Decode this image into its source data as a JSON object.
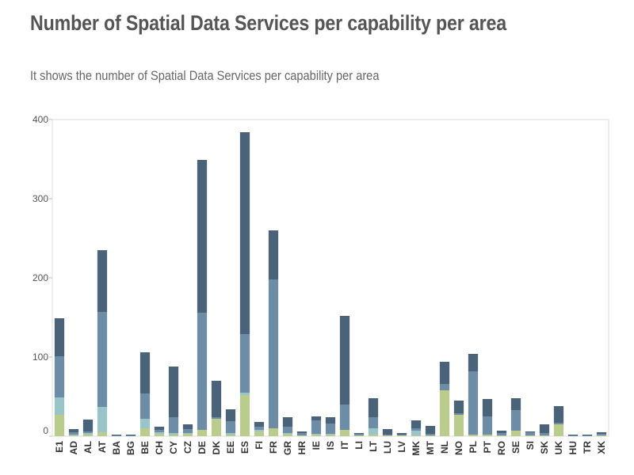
{
  "chart_data": {
    "type": "bar",
    "stacked": true,
    "title": "Number of Spatial Data Services per capability per area",
    "subtitle": "It shows the number of Spatial Data Services per capability per area",
    "xlabel": "",
    "ylabel": "",
    "ylim": [
      0,
      400
    ],
    "yticks": [
      "0",
      "100",
      "200",
      "300",
      "400"
    ],
    "grid": false,
    "legend": "none",
    "categories": [
      "E1",
      "AD",
      "AL",
      "AT",
      "BA",
      "BG",
      "BE",
      "CH",
      "CY",
      "CZ",
      "DE",
      "DK",
      "EE",
      "ES",
      "FI",
      "FR",
      "GR",
      "HR",
      "IE",
      "IS",
      "IT",
      "LI",
      "LT",
      "LU",
      "LV",
      "MK",
      "MT",
      "NL",
      "NO",
      "PL",
      "PT",
      "RO",
      "SE",
      "SI",
      "SK",
      "UK",
      "HU",
      "TR",
      "XK"
    ],
    "series": [
      {
        "color": "#b9cc8c",
        "values": [
          27,
          1,
          2,
          5,
          0,
          0,
          10,
          3,
          2,
          3,
          8,
          22,
          2,
          52,
          6,
          10,
          3,
          1,
          2,
          2,
          8,
          1,
          2,
          1,
          1,
          1,
          1,
          58,
          27,
          2,
          2,
          1,
          7,
          1,
          1,
          15,
          0,
          0,
          1
        ]
      },
      {
        "color": "#9ac5c8",
        "values": [
          22,
          1,
          2,
          32,
          0,
          0,
          12,
          2,
          2,
          1,
          0,
          0,
          2,
          3,
          2,
          0,
          1,
          0,
          1,
          1,
          0,
          0,
          8,
          0,
          0,
          6,
          0,
          0,
          0,
          0,
          0,
          0,
          0,
          0,
          0,
          0,
          0,
          0,
          0
        ]
      },
      {
        "color": "#6c8da5",
        "values": [
          52,
          3,
          2,
          120,
          1,
          1,
          32,
          3,
          20,
          5,
          148,
          2,
          15,
          74,
          4,
          188,
          8,
          3,
          17,
          13,
          32,
          2,
          14,
          1,
          1,
          3,
          2,
          8,
          2,
          80,
          23,
          3,
          26,
          4,
          3,
          2,
          1,
          1,
          2
        ]
      },
      {
        "color": "#4a6378",
        "values": [
          48,
          4,
          15,
          78,
          1,
          1,
          52,
          4,
          64,
          6,
          193,
          46,
          15,
          255,
          6,
          62,
          12,
          2,
          5,
          8,
          112,
          1,
          24,
          7,
          2,
          10,
          10,
          28,
          16,
          22,
          22,
          3,
          15,
          1,
          11,
          21,
          1,
          1,
          2
        ]
      }
    ]
  }
}
